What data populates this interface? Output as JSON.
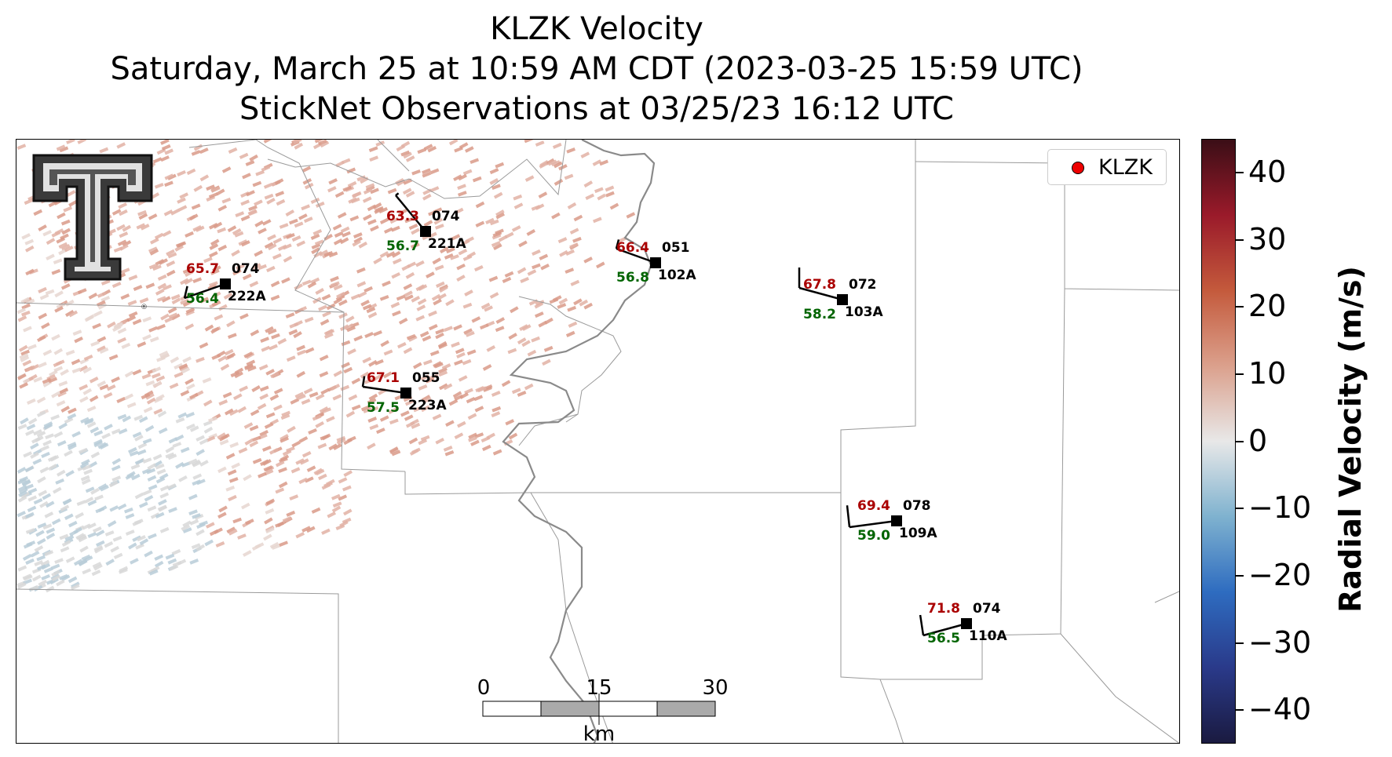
{
  "title": {
    "line1": "KLZK Velocity",
    "line2": "Saturday, March 25 at 10:59 AM CDT (2023-03-25 15:59 UTC)",
    "line3": "StickNet Observations at 03/25/23 16:12 UTC"
  },
  "legend": {
    "label": "KLZK",
    "marker_color": "#ee0000"
  },
  "colorbar": {
    "label": "Radial Velocity (m/s)",
    "min": -45,
    "max": 45,
    "ticks": [
      "40",
      "30",
      "20",
      "10",
      "0",
      "−10",
      "−20",
      "−30",
      "−40"
    ],
    "tick_values": [
      40,
      30,
      20,
      10,
      0,
      -10,
      -20,
      -30,
      -40
    ],
    "colors": [
      "#1a1a40",
      "#2a3a8a",
      "#2e6cc0",
      "#7fb2cf",
      "#e8e8e8",
      "#dba08c",
      "#c45a3c",
      "#9a1a2a",
      "#3a0e16"
    ]
  },
  "scale_bar": {
    "labels": [
      "0",
      "15",
      "30"
    ],
    "unit": "km"
  },
  "stations": [
    {
      "id": "222A",
      "temp": "65.7",
      "dew": "56.4",
      "dir": "074"
    },
    {
      "id": "221A",
      "temp": "63.3",
      "dew": "56.7",
      "dir": "074"
    },
    {
      "id": "102A",
      "temp": "66.4",
      "dew": "56.8",
      "dir": "051"
    },
    {
      "id": "103A",
      "temp": "67.8",
      "dew": "58.2",
      "dir": "072"
    },
    {
      "id": "223A",
      "temp": "67.1",
      "dew": "57.5",
      "dir": "055"
    },
    {
      "id": "109A",
      "temp": "69.4",
      "dew": "59.0",
      "dir": "078"
    },
    {
      "id": "110A",
      "temp": "71.8",
      "dew": "56.5",
      "dir": "074"
    }
  ],
  "logo": {
    "name": "Texas Tech Double T"
  },
  "colors": {
    "temp": "#aa0000",
    "dew": "#006400",
    "river": "#888888",
    "boundary": "#999999"
  }
}
